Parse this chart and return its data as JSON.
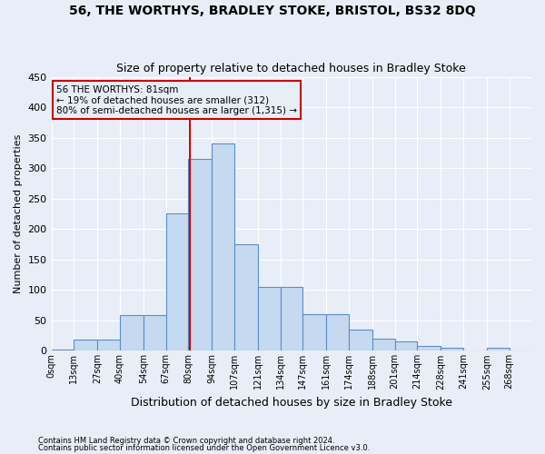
{
  "title": "56, THE WORTHYS, BRADLEY STOKE, BRISTOL, BS32 8DQ",
  "subtitle": "Size of property relative to detached houses in Bradley Stoke",
  "xlabel": "Distribution of detached houses by size in Bradley Stoke",
  "ylabel": "Number of detached properties",
  "footnote1": "Contains HM Land Registry data © Crown copyright and database right 2024.",
  "footnote2": "Contains public sector information licensed under the Open Government Licence v3.0.",
  "annotation_title": "56 THE WORTHYS: 81sqm",
  "annotation_line1": "← 19% of detached houses are smaller (312)",
  "annotation_line2": "80% of semi-detached houses are larger (1,315) →",
  "property_size": 81,
  "bar_color": "#c5d9f0",
  "bar_edge_color": "#5b8ec4",
  "vline_color": "#cc0000",
  "annotation_box_edge": "#cc0000",
  "bin_edges": [
    0,
    13,
    27,
    40,
    54,
    67,
    80,
    94,
    107,
    121,
    134,
    147,
    161,
    174,
    188,
    201,
    214,
    228,
    241,
    255,
    268,
    281
  ],
  "categories": [
    "0sqm",
    "13sqm",
    "27sqm",
    "40sqm",
    "54sqm",
    "67sqm",
    "80sqm",
    "94sqm",
    "107sqm",
    "121sqm",
    "134sqm",
    "147sqm",
    "161sqm",
    "174sqm",
    "188sqm",
    "201sqm",
    "214sqm",
    "228sqm",
    "241sqm",
    "255sqm",
    "268sqm"
  ],
  "values": [
    2,
    18,
    18,
    58,
    58,
    225,
    315,
    340,
    175,
    105,
    105,
    60,
    60,
    35,
    20,
    15,
    8,
    5,
    0,
    5,
    0
  ],
  "ylim": [
    0,
    450
  ],
  "yticks": [
    0,
    50,
    100,
    150,
    200,
    250,
    300,
    350,
    400,
    450
  ],
  "background_color": "#e8eef8",
  "grid_color": "#ffffff",
  "title_fontsize": 10,
  "subtitle_fontsize": 9,
  "ylabel_fontsize": 8,
  "xlabel_fontsize": 9
}
